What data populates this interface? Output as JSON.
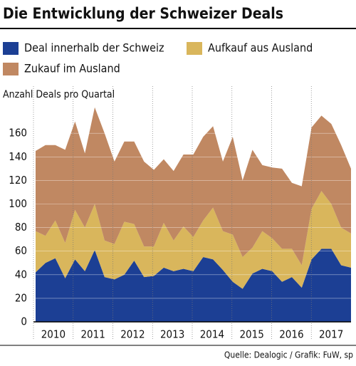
{
  "chart_data": {
    "type": "stacked_area",
    "title": "Die Entwicklung der Schweizer Deals",
    "y_label": "Anzahl Deals pro Quartal",
    "source": "Quelle: Dealogic / Grafik: FuW, sp",
    "years": [
      "2010",
      "2011",
      "2012",
      "2013",
      "2014",
      "2015",
      "2016",
      "2017"
    ],
    "series": [
      {
        "name": "Deal innerhalb der Schweiz",
        "color": "#1c3f94",
        "values": [
          42,
          50,
          54,
          37,
          53,
          43,
          61,
          38,
          36,
          40,
          52,
          38,
          39,
          46,
          43,
          45,
          43,
          55,
          53,
          44,
          34,
          28,
          41,
          45,
          43,
          34,
          38,
          29,
          53,
          62,
          62,
          48,
          46
        ]
      },
      {
        "name": "Aufkauf aus Ausland",
        "color": "#d9b65c",
        "values": [
          35,
          23,
          32,
          30,
          42,
          37,
          39,
          31,
          30,
          45,
          31,
          26,
          25,
          38,
          26,
          36,
          29,
          31,
          44,
          33,
          40,
          27,
          22,
          32,
          28,
          28,
          24,
          19,
          43,
          49,
          38,
          32,
          29
        ]
      },
      {
        "name": "Zukauf im Ausland",
        "color": "#c08862",
        "values": [
          68,
          77,
          64,
          79,
          75,
          63,
          82,
          91,
          70,
          68,
          70,
          72,
          65,
          54,
          59,
          61,
          70,
          71,
          69,
          59,
          83,
          65,
          83,
          56,
          60,
          68,
          56,
          67,
          69,
          64,
          68,
          70,
          55
        ]
      }
    ],
    "ylim": [
      0,
      200
    ],
    "yticks": [
      0,
      20,
      40,
      60,
      80,
      100,
      120,
      140,
      160
    ],
    "grid": true
  }
}
